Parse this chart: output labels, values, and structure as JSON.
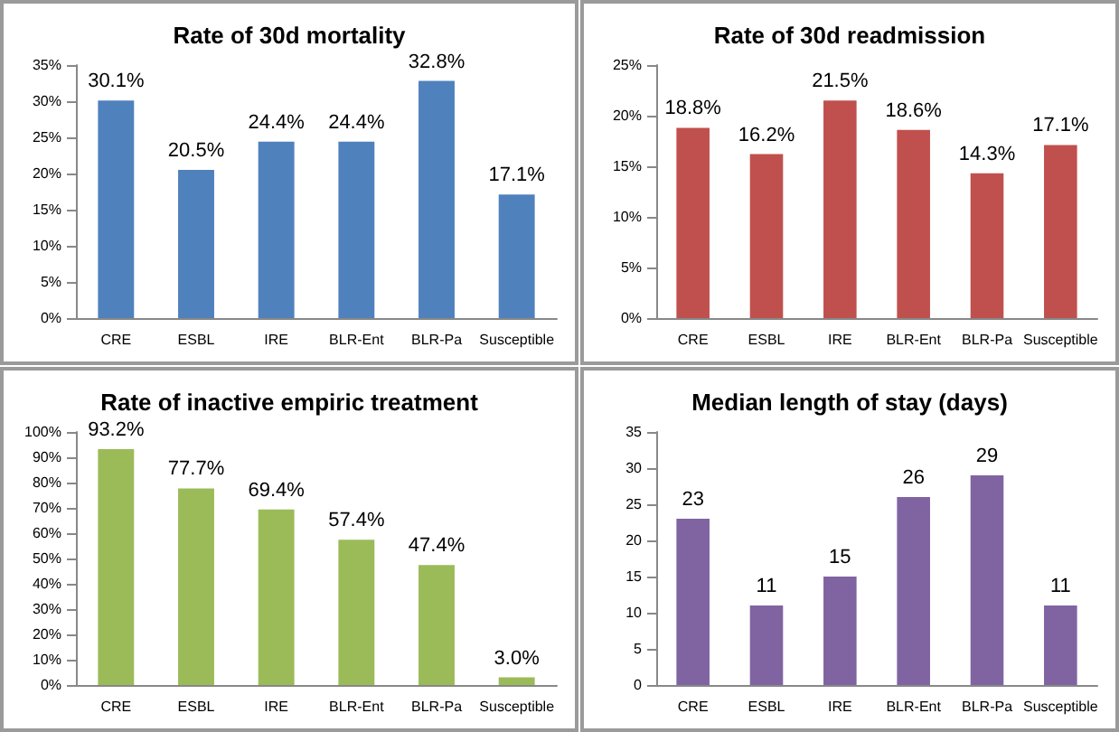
{
  "chart_data": [
    {
      "type": "bar",
      "title": "Rate of 30d mortality",
      "categories": [
        "CRE",
        "ESBL",
        "IRE",
        "BLR-Ent",
        "BLR-Pa",
        "Susceptible"
      ],
      "values": [
        30.1,
        20.5,
        24.4,
        24.4,
        32.8,
        17.1
      ],
      "value_labels": [
        "30.1%",
        "20.5%",
        "24.4%",
        "24.4%",
        "32.8%",
        "17.1%"
      ],
      "color": "#4f81bd",
      "ylim": [
        0,
        35
      ],
      "yticks": [
        {
          "value": 0,
          "label": "0%"
        },
        {
          "value": 5,
          "label": "5%"
        },
        {
          "value": 10,
          "label": "10%"
        },
        {
          "value": 15,
          "label": "15%"
        },
        {
          "value": 20,
          "label": "20%"
        },
        {
          "value": 25,
          "label": "25%"
        },
        {
          "value": 30,
          "label": "30%"
        },
        {
          "value": 35,
          "label": "35%"
        }
      ]
    },
    {
      "type": "bar",
      "title": "Rate of 30d readmission",
      "categories": [
        "CRE",
        "ESBL",
        "IRE",
        "BLR-Ent",
        "BLR-Pa",
        "Susceptible"
      ],
      "values": [
        18.8,
        16.2,
        21.5,
        18.6,
        14.3,
        17.1
      ],
      "value_labels": [
        "18.8%",
        "16.2%",
        "21.5%",
        "18.6%",
        "14.3%",
        "17.1%"
      ],
      "color": "#c0504d",
      "ylim": [
        0,
        25
      ],
      "yticks": [
        {
          "value": 0,
          "label": "0%"
        },
        {
          "value": 5,
          "label": "5%"
        },
        {
          "value": 10,
          "label": "10%"
        },
        {
          "value": 15,
          "label": "15%"
        },
        {
          "value": 20,
          "label": "20%"
        },
        {
          "value": 25,
          "label": "25%"
        }
      ]
    },
    {
      "type": "bar",
      "title": "Rate of inactive empiric treatment",
      "categories": [
        "CRE",
        "ESBL",
        "IRE",
        "BLR-Ent",
        "BLR-Pa",
        "Susceptible"
      ],
      "values": [
        93.2,
        77.7,
        69.4,
        57.4,
        47.4,
        3.0
      ],
      "value_labels": [
        "93.2%",
        "77.7%",
        "69.4%",
        "57.4%",
        "47.4%",
        "3.0%"
      ],
      "color": "#9bbb59",
      "ylim": [
        0,
        100
      ],
      "yticks": [
        {
          "value": 0,
          "label": "0%"
        },
        {
          "value": 10,
          "label": "10%"
        },
        {
          "value": 20,
          "label": "20%"
        },
        {
          "value": 30,
          "label": "30%"
        },
        {
          "value": 40,
          "label": "40%"
        },
        {
          "value": 50,
          "label": "50%"
        },
        {
          "value": 60,
          "label": "60%"
        },
        {
          "value": 70,
          "label": "70%"
        },
        {
          "value": 80,
          "label": "80%"
        },
        {
          "value": 90,
          "label": "90%"
        },
        {
          "value": 100,
          "label": "100%"
        }
      ]
    },
    {
      "type": "bar",
      "title": "Median length of stay (days)",
      "categories": [
        "CRE",
        "ESBL",
        "IRE",
        "BLR-Ent",
        "BLR-Pa",
        "Susceptible"
      ],
      "values": [
        23,
        11,
        15,
        26,
        29,
        11
      ],
      "data_labels": true,
      "color": "#8064a2",
      "ylim": [
        0,
        35
      ],
      "yticks": [
        0,
        5,
        10,
        15,
        20,
        25,
        30,
        35
      ]
    }
  ]
}
